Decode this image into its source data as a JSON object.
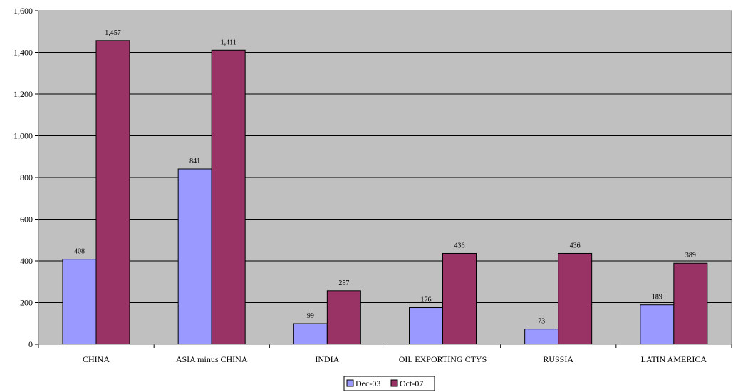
{
  "chart_data": {
    "type": "bar",
    "categories": [
      "CHINA",
      "ASIA minus CHINA",
      "INDIA",
      "OIL EXPORTING CTYS",
      "RUSSIA",
      "LATIN AMERICA"
    ],
    "series": [
      {
        "name": "Dec-03",
        "values": [
          408,
          841,
          99,
          176,
          73,
          189
        ]
      },
      {
        "name": "Oct-07",
        "values": [
          1457,
          1411,
          257,
          436,
          436,
          389
        ]
      }
    ],
    "data_labels": [
      [
        "408",
        "841",
        "99",
        "176",
        "73",
        "189"
      ],
      [
        "1,457",
        "1,411",
        "257",
        "436",
        "436",
        "389"
      ]
    ],
    "ylim": [
      0,
      1600
    ],
    "yticks": [
      0,
      200,
      400,
      600,
      800,
      1000,
      1200,
      1400,
      1600
    ],
    "ytick_labels": [
      "0",
      "200",
      "400",
      "600",
      "800",
      "1,000",
      "1,200",
      "1,400",
      "1,600"
    ],
    "grid": true,
    "legend_position": "bottom",
    "colors": {
      "plot_background": "#c0c0c0",
      "series": [
        "#9999ff",
        "#993366"
      ],
      "gridline": "#000000"
    }
  }
}
